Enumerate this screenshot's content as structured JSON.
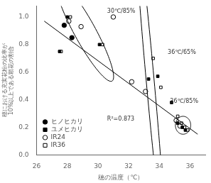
{
  "chart_data": {
    "type": "scatter",
    "xlabel": "穂の温度（℃）",
    "ylabel": [
      "穂における充実花粉の比率が",
      "10%以上である顆花の割合"
    ],
    "xlim": [
      26,
      37
    ],
    "ylim": [
      0.0,
      1.08
    ],
    "xticks": [
      26,
      28,
      30,
      32,
      34,
      36
    ],
    "yticks": [
      {
        "value": 0.0,
        "label": "0.0"
      },
      0.2,
      0.4,
      0.6,
      0.8,
      {
        "value": 1.0,
        "label": "1.0"
      }
    ],
    "grid": false,
    "legend": "lower left",
    "series": [
      {
        "name": "ヒノヒカリ",
        "color": "#000000",
        "marker": "circle",
        "x": [
          27.8,
          28.3
        ],
        "y": [
          0.94,
          0.85
        ]
      },
      {
        "name": "ユメヒカリ",
        "color": "#000000",
        "marker": "square",
        "x": [
          27.5,
          28.0,
          30.1,
          33.3,
          33.9,
          34.8,
          35.2,
          35.5,
          35.7
        ],
        "y": [
          0.75,
          1.0,
          0.8,
          0.55,
          0.57,
          0.38,
          0.23,
          0.2,
          0.18
        ]
      },
      {
        "name": "IR24",
        "color": "#000000",
        "marker": "circle_open",
        "x": [
          28.1,
          28.9,
          31.0,
          32.2,
          33.1,
          35.1,
          35.35
        ],
        "y": [
          0.97,
          0.93,
          1.0,
          0.53,
          0.46,
          0.25,
          0.21
        ]
      },
      {
        "name": "IR36",
        "color": "#000000",
        "marker": "square_open",
        "x": [
          27.6,
          28.2,
          30.3,
          33.6,
          34.1,
          35.2,
          35.45,
          35.65,
          35.85
        ],
        "y": [
          0.75,
          1.0,
          0.8,
          0.7,
          0.49,
          0.28,
          0.23,
          0.2,
          0.18
        ]
      }
    ],
    "regression": {
      "x": [
        26.5,
        36.5
      ],
      "y": [
        0.97,
        0.15
      ],
      "color": "#000000",
      "line_style": "solid"
    },
    "ellipses": [
      {
        "cx": 29.15,
        "cy": 0.895,
        "width": 3.8,
        "height": 0.3,
        "angle": -10
      },
      {
        "cx": 33.4,
        "cy": 0.545,
        "width": 3.0,
        "height": 0.4,
        "angle": -50
      },
      {
        "cx": 35.55,
        "cy": 0.215,
        "width": 1.0,
        "height": 0.13,
        "angle": 0
      }
    ],
    "annotations": [
      {
        "text": "30℃/85%",
        "x": 30.6,
        "y": 1.02
      },
      {
        "text": "36℃/65%",
        "x": 34.55,
        "y": 0.72
      },
      {
        "text": "36℃/85%",
        "x": 34.7,
        "y": 0.37
      },
      {
        "text": "R²=0.873",
        "x": 30.6,
        "y": 0.24
      }
    ]
  }
}
